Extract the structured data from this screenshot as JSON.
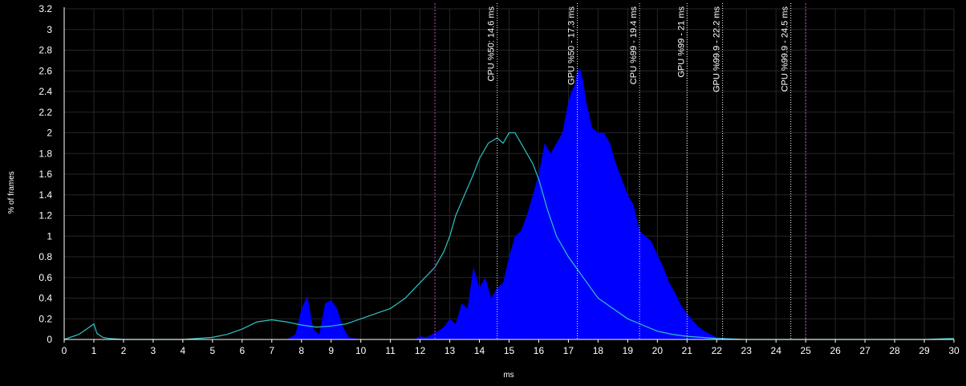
{
  "chart_data": {
    "type": "area",
    "xlabel": "ms",
    "ylabel": "% of frames",
    "xlim": [
      0,
      30
    ],
    "ylim": [
      0,
      3.2
    ],
    "x_ticks": [
      0,
      1,
      2,
      3,
      4,
      5,
      6,
      7,
      8,
      9,
      10,
      11,
      12,
      13,
      14,
      15,
      16,
      17,
      18,
      19,
      20,
      21,
      22,
      23,
      24,
      25,
      26,
      27,
      28,
      29,
      30
    ],
    "y_ticks": [
      "0",
      "0.2",
      "0.4",
      "0.6",
      "0.8",
      "1",
      "1.2",
      "1.4",
      "1.6",
      "1.8",
      "2",
      "2.2",
      "2.4",
      "2.6",
      "2.8",
      "3",
      "3.2"
    ],
    "grid": true,
    "colors": {
      "gpu_fill": "#0000ff",
      "cpu_line": "#2ec4c4",
      "percentile_line": "#ffffff",
      "range_line": "#cc44cc",
      "grid": "#262626",
      "axis": "#ffffff"
    },
    "series": [
      {
        "x": [
          0,
          0.5,
          1,
          1.5,
          2,
          3,
          4,
          5,
          6,
          7,
          7.5,
          7.8,
          8.0,
          8.2,
          8.4,
          8.6,
          8.8,
          9.0,
          9.2,
          9.4,
          9.6,
          9.8,
          10,
          11,
          11.8,
          12,
          12.2,
          12.4,
          12.6,
          12.8,
          13.0,
          13.2,
          13.4,
          13.6,
          13.8,
          14.0,
          14.2,
          14.4,
          14.6,
          14.8,
          15.0,
          15.2,
          15.4,
          15.6,
          15.8,
          16.0,
          16.2,
          16.4,
          16.6,
          16.8,
          17.0,
          17.1,
          17.2,
          17.3,
          17.4,
          17.5,
          17.6,
          17.8,
          18.0,
          18.2,
          18.4,
          18.6,
          18.8,
          19.0,
          19.2,
          19.4,
          19.6,
          19.8,
          20.0,
          20.2,
          20.4,
          20.6,
          20.8,
          21.0,
          21.2,
          21.4,
          21.6,
          21.8,
          22.0,
          22.5,
          23,
          24,
          25,
          26,
          27,
          28,
          29,
          30
        ],
        "values": [
          0,
          0,
          0,
          0,
          0,
          0,
          0,
          0,
          0,
          0,
          0,
          0.05,
          0.3,
          0.42,
          0.1,
          0.05,
          0.35,
          0.38,
          0.3,
          0.12,
          0.02,
          0.01,
          0,
          0,
          0,
          0.03,
          0.02,
          0.05,
          0.08,
          0.12,
          0.2,
          0.15,
          0.35,
          0.3,
          0.7,
          0.5,
          0.6,
          0.4,
          0.5,
          0.55,
          0.8,
          1.0,
          1.05,
          1.2,
          1.4,
          1.6,
          1.9,
          1.8,
          1.9,
          2.0,
          2.3,
          2.4,
          2.45,
          2.6,
          2.62,
          2.5,
          2.3,
          2.05,
          2.0,
          2.0,
          1.9,
          1.7,
          1.55,
          1.4,
          1.3,
          1.05,
          1.0,
          0.95,
          0.82,
          0.7,
          0.55,
          0.45,
          0.33,
          0.25,
          0.18,
          0.12,
          0.08,
          0.05,
          0.02,
          0.01,
          0,
          0,
          0,
          0,
          0,
          0,
          0,
          0
        ]
      },
      {
        "x": [
          0,
          0.5,
          1,
          1.1,
          1.3,
          1.5,
          2,
          3,
          4,
          5,
          5.5,
          6,
          6.5,
          7,
          7.5,
          8,
          8.5,
          9,
          9.5,
          10,
          10.5,
          11,
          11.5,
          12,
          12.5,
          12.8,
          13.0,
          13.2,
          13.5,
          13.8,
          14.0,
          14.3,
          14.6,
          14.8,
          15.0,
          15.2,
          15.5,
          15.8,
          16.0,
          16.3,
          16.6,
          17.0,
          17.5,
          18,
          18.5,
          19,
          19.5,
          20,
          20.5,
          21,
          22,
          23,
          24,
          25,
          26,
          27,
          28,
          29,
          30
        ],
        "values": [
          0,
          0.05,
          0.15,
          0.06,
          0.02,
          0.01,
          0,
          0,
          0,
          0.02,
          0.05,
          0.1,
          0.17,
          0.19,
          0.17,
          0.14,
          0.12,
          0.13,
          0.15,
          0.2,
          0.25,
          0.3,
          0.4,
          0.55,
          0.7,
          0.85,
          1.0,
          1.2,
          1.4,
          1.6,
          1.75,
          1.9,
          1.95,
          1.9,
          2.0,
          2.0,
          1.85,
          1.7,
          1.55,
          1.25,
          1.0,
          0.8,
          0.6,
          0.4,
          0.3,
          0.2,
          0.14,
          0.08,
          0.05,
          0.03,
          0.01,
          0,
          0,
          0,
          0,
          0,
          0,
          0,
          0.01
        ]
      }
    ],
    "vertical_markers": [
      {
        "x": 12.5,
        "label": "",
        "style": "range"
      },
      {
        "x": 14.6,
        "label": "CPU %50: 14.6 ms",
        "style": "percentile"
      },
      {
        "x": 17.3,
        "label": "GPU %50 - 17.3 ms",
        "style": "percentile"
      },
      {
        "x": 19.4,
        "label": "CPU %99 - 19.4 ms",
        "style": "percentile"
      },
      {
        "x": 21,
        "label": "GPU %99 - 21 ms",
        "style": "percentile"
      },
      {
        "x": 22.2,
        "label": "GPU %99.9 - 22.2 ms",
        "style": "percentile"
      },
      {
        "x": 24.5,
        "label": "CPU %99.9 - 24.5 ms",
        "style": "percentile"
      },
      {
        "x": 25,
        "label": "",
        "style": "range"
      }
    ]
  }
}
